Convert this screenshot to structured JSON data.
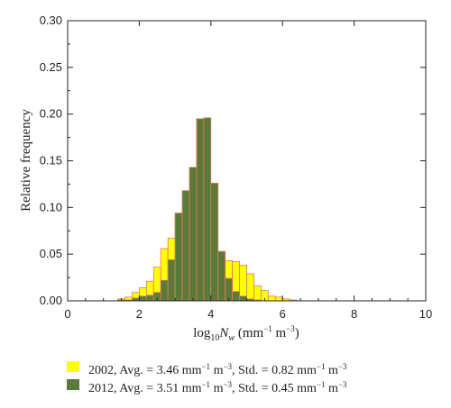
{
  "chart_data": {
    "type": "bar",
    "xlabel": "log10Nw (mm−1 m−3)",
    "ylabel": "Relative frequency",
    "xlim": [
      0,
      10
    ],
    "ylim": [
      0,
      0.3
    ],
    "xticks": [
      0,
      2,
      4,
      6,
      8,
      10
    ],
    "yticks": [
      0.0,
      0.05,
      0.1,
      0.15,
      0.2,
      0.25,
      0.3
    ],
    "ytick_labels": [
      "0.00",
      "0.05",
      "0.10",
      "0.15",
      "0.20",
      "0.25",
      "0.30"
    ],
    "bin_width": 0.2,
    "bin_starts": [
      1.2,
      1.4,
      1.6,
      1.8,
      2.0,
      2.2,
      2.4,
      2.6,
      2.8,
      3.0,
      3.2,
      3.4,
      3.6,
      3.8,
      4.0,
      4.2,
      4.4,
      4.6,
      4.8,
      5.0,
      5.2,
      5.4,
      5.6,
      5.8,
      6.0,
      6.2
    ],
    "series": [
      {
        "name": "2002",
        "color": "#ffff00",
        "edge_color": "#e07a5a",
        "values": [
          0.0,
          0.002,
          0.004,
          0.009,
          0.014,
          0.021,
          0.036,
          0.056,
          0.067,
          0.09,
          0.082,
          0.082,
          0.076,
          0.066,
          0.051,
          0.047,
          0.043,
          0.042,
          0.038,
          0.029,
          0.016,
          0.011,
          0.005,
          0.004,
          0.002,
          0.001
        ]
      },
      {
        "name": "2012",
        "color": "#5b7a3a",
        "edge_color": "#e07a5a",
        "values": [
          0.0,
          0.001,
          0.001,
          0.003,
          0.005,
          0.006,
          0.009,
          0.022,
          0.044,
          0.094,
          0.118,
          0.143,
          0.195,
          0.196,
          0.126,
          0.053,
          0.024,
          0.01,
          0.005,
          0.002,
          0.001,
          0.0,
          0.0,
          0.0,
          0.0,
          0.0
        ]
      }
    ]
  },
  "legend": {
    "entries": [
      {
        "year": "2002",
        "avg_prefix": ", Avg. = ",
        "avg_value": "3.46",
        "std_prefix": ", Std. = ",
        "std_value": "0.82",
        "color": "#ffff00"
      },
      {
        "year": "2012",
        "avg_prefix": ", Avg. = ",
        "avg_value": "3.51",
        "std_prefix": ", Std. = ",
        "std_value": "0.45",
        "color": "#5b7a3a"
      }
    ],
    "unit_mm": "mm",
    "unit_mm_exp": "−1",
    "unit_m": "m",
    "unit_m_exp": "−3"
  }
}
